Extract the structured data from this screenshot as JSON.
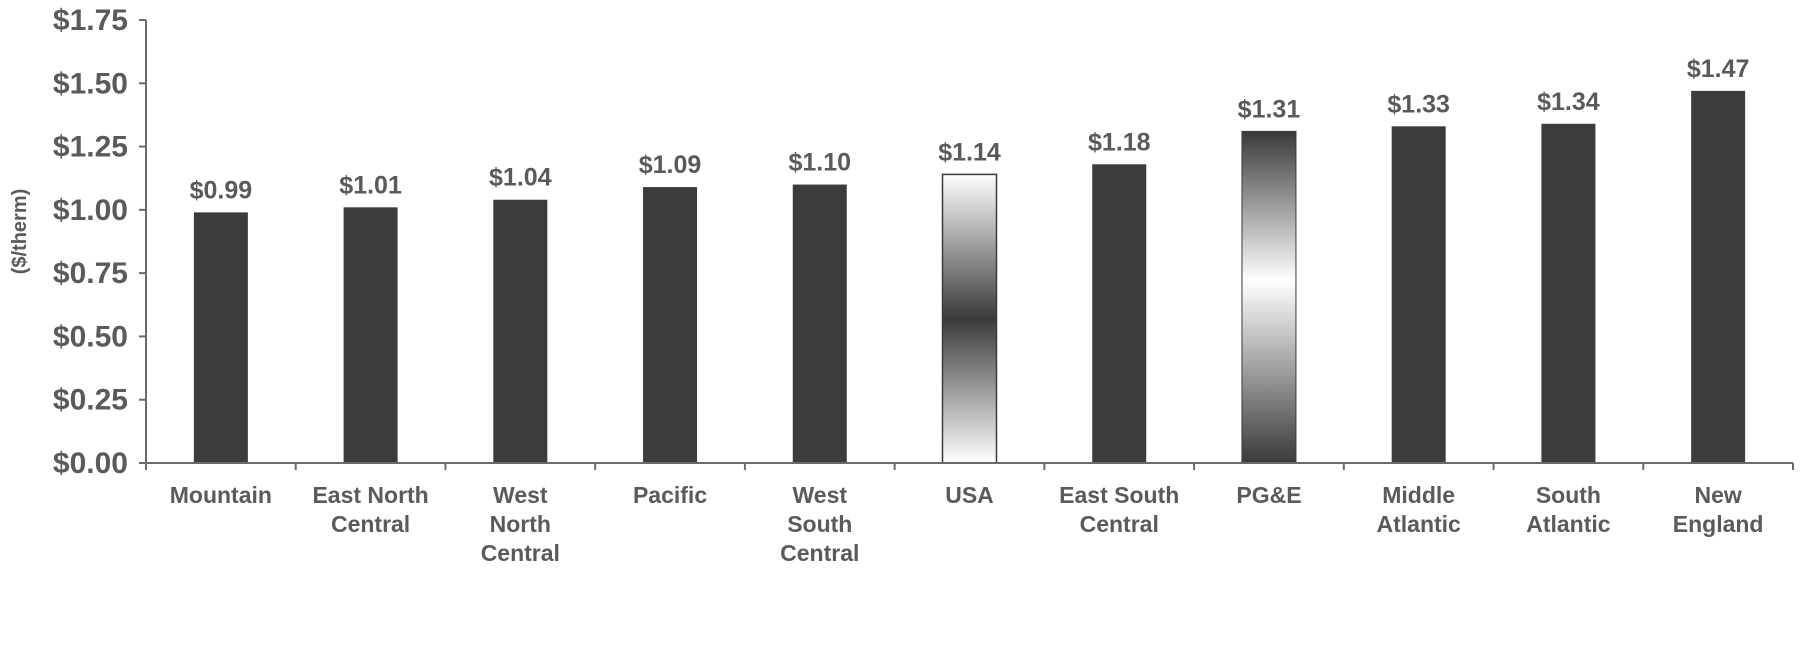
{
  "chart_data": {
    "type": "bar",
    "categories": [
      [
        "Mountain"
      ],
      [
        "East North",
        "Central"
      ],
      [
        "West",
        "North",
        "Central"
      ],
      [
        "Pacific"
      ],
      [
        "West",
        "South",
        "Central"
      ],
      [
        "USA"
      ],
      [
        "East South",
        "Central"
      ],
      [
        "PG&E"
      ],
      [
        "Middle",
        "Atlantic"
      ],
      [
        "South",
        "Atlantic"
      ],
      [
        "New",
        "England"
      ]
    ],
    "values": [
      0.99,
      1.01,
      1.04,
      1.09,
      1.1,
      1.14,
      1.18,
      1.31,
      1.33,
      1.34,
      1.47
    ],
    "data_labels": [
      "$0.99",
      "$1.01",
      "$1.04",
      "$1.09",
      "$1.10",
      "$1.14",
      "$1.18",
      "$1.31",
      "$1.33",
      "$1.34",
      "$1.47"
    ],
    "bar_styles": [
      "solid",
      "solid",
      "solid",
      "solid",
      "solid",
      "outline-gradient",
      "solid",
      "gradient",
      "solid",
      "solid",
      "solid"
    ],
    "ylabel": "($/therm)",
    "ylim": [
      0,
      1.75
    ],
    "yticks": [
      0,
      0.25,
      0.5,
      0.75,
      1.0,
      1.25,
      1.5,
      1.75
    ],
    "ytick_labels": [
      "$0.00",
      "$0.25",
      "$0.50",
      "$0.75",
      "$1.00",
      "$1.25",
      "$1.50",
      "$1.75"
    ],
    "grid": false,
    "colors": {
      "bar": "#3c3c3c",
      "text": "#5a5a5a",
      "axis": "#6a6a6a"
    }
  }
}
